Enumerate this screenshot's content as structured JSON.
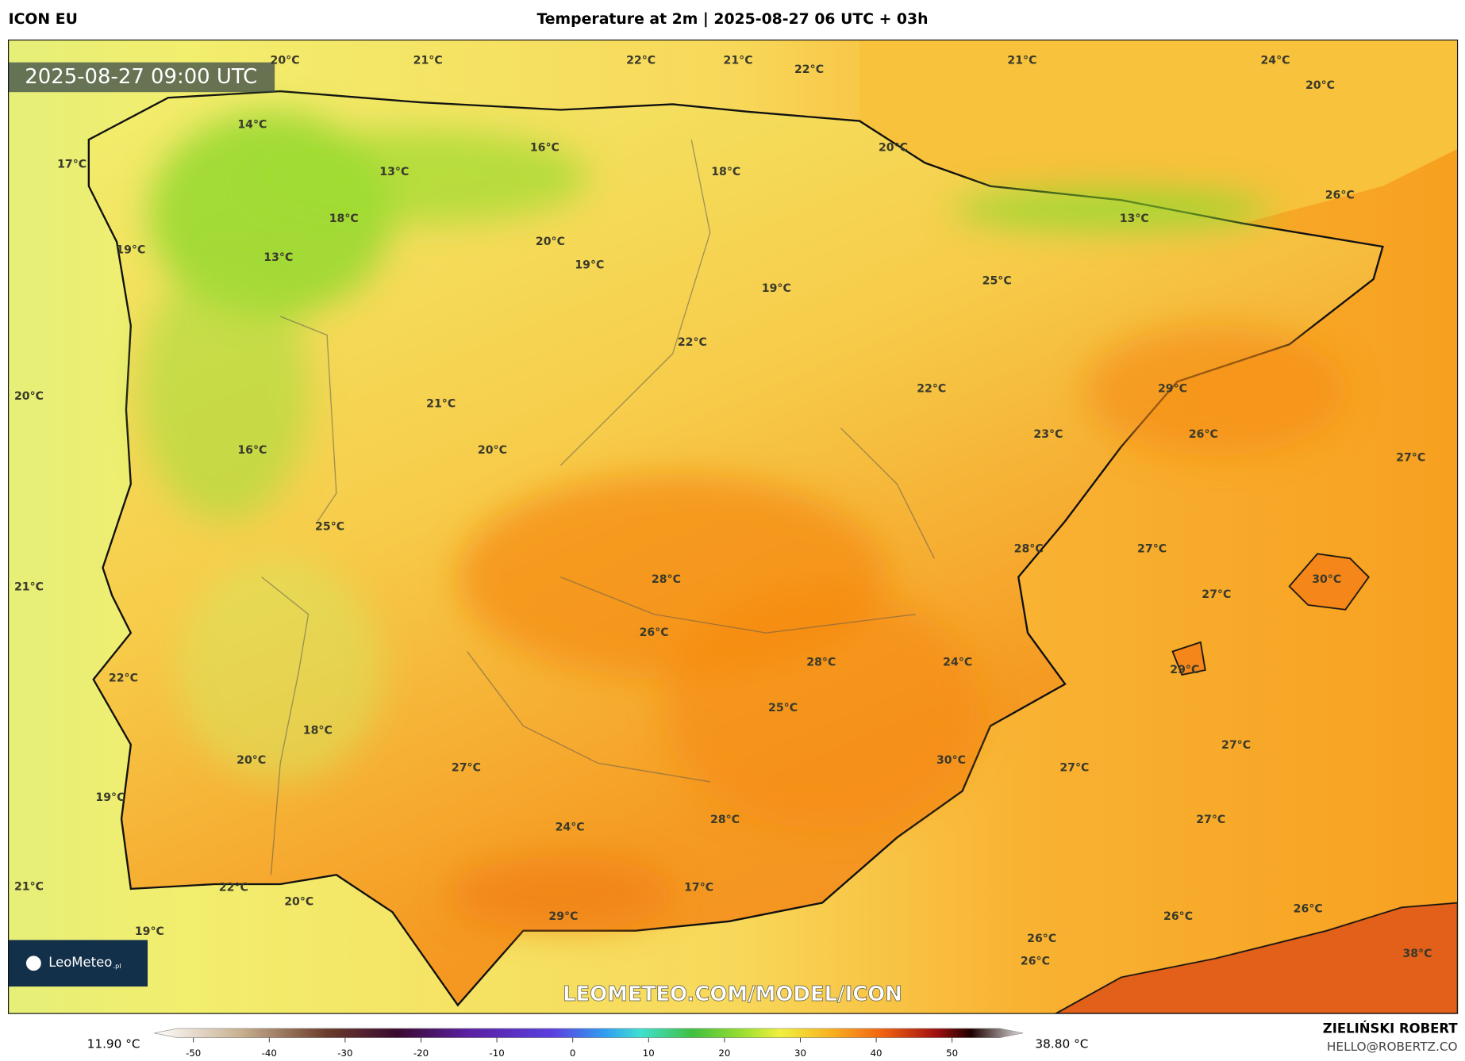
{
  "header": {
    "model": "ICON EU",
    "title": "Temperature at 2m | 2025-08-27 06 UTC + 03h"
  },
  "map": {
    "timestamp": "2025-08-27 09:00 UTC",
    "watermark": "LEOMETEO.COM/MODEL/ICON",
    "logo": {
      "name": "LeoMeteo",
      "suffix": ".pl"
    },
    "labels": [
      "20°C",
      "21°C",
      "22°C",
      "21°C",
      "22°C",
      "21°C",
      "24°C",
      "20°C",
      "14°C",
      "16°C",
      "17°C",
      "13°C",
      "18°C",
      "20°C",
      "26°C",
      "18°C",
      "13°C",
      "19°C",
      "13°C",
      "20°C",
      "19°C",
      "19°C",
      "25°C",
      "22°C",
      "22°C",
      "29°C",
      "20°C",
      "21°C",
      "23°C",
      "26°C",
      "20°C",
      "16°C",
      "27°C",
      "25°C",
      "28°C",
      "27°C",
      "28°C",
      "30°C",
      "21°C",
      "27°C",
      "26°C",
      "28°C",
      "24°C",
      "29°C",
      "22°C",
      "25°C",
      "18°C",
      "27°C",
      "20°C",
      "27°C",
      "30°C",
      "27°C",
      "19°C",
      "27°C",
      "28°C",
      "24°C",
      "17°C",
      "21°C",
      "22°C",
      "20°C",
      "29°C",
      "26°C",
      "26°C",
      "19°C",
      "26°C",
      "26°C",
      "38°C"
    ]
  },
  "colorbar": {
    "min_label": "11.90 °C",
    "max_label": "38.80 °C",
    "ticks": [
      -50,
      -40,
      -30,
      -20,
      -10,
      0,
      10,
      20,
      30,
      40,
      50
    ]
  },
  "footer": {
    "author": "ZIELIŃSKI ROBERT",
    "email": "HELLO@ROBERTZ.CO"
  }
}
